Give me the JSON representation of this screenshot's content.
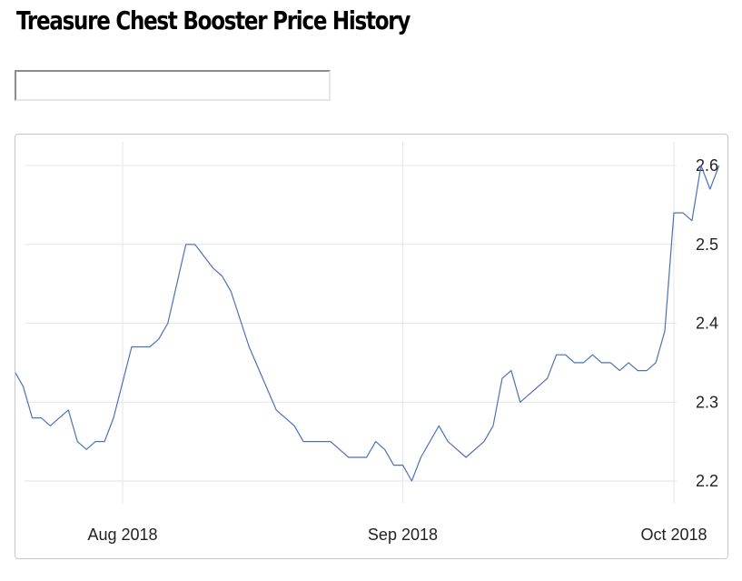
{
  "page": {
    "title": "Treasure Chest Booster Price History",
    "search": {
      "value": "",
      "placeholder": ""
    }
  },
  "colors": {
    "line": "#4a72b8",
    "grid": "#e6e6e6",
    "axis_text": "#222222"
  },
  "chart_data": {
    "type": "line",
    "title": "",
    "xlabel": "",
    "ylabel": "",
    "grid": true,
    "legend": "none",
    "ylim": [
      2.165,
      2.615
    ],
    "xlim": [
      "2018-07-19",
      "2018-10-02"
    ],
    "yticks": [
      2.2,
      2.3,
      2.4,
      2.5,
      2.6
    ],
    "xticks": [
      {
        "label": "Aug 2018",
        "date": "2018-08-01"
      },
      {
        "label": "Sep 2018",
        "date": "2018-09-01"
      },
      {
        "label": "Oct 2018",
        "date": "2018-10-01"
      }
    ],
    "series": [
      {
        "points": [
          [
            "2018-07-20",
            2.34
          ],
          [
            "2018-07-21",
            2.32
          ],
          [
            "2018-07-22",
            2.28
          ],
          [
            "2018-07-23",
            2.28
          ],
          [
            "2018-07-24",
            2.27
          ],
          [
            "2018-07-25",
            2.28
          ],
          [
            "2018-07-26",
            2.29
          ],
          [
            "2018-07-27",
            2.25
          ],
          [
            "2018-07-28",
            2.24
          ],
          [
            "2018-07-29",
            2.25
          ],
          [
            "2018-07-30",
            2.25
          ],
          [
            "2018-07-31",
            2.28
          ],
          [
            "2018-08-02",
            2.37
          ],
          [
            "2018-08-04",
            2.37
          ],
          [
            "2018-08-05",
            2.38
          ],
          [
            "2018-08-06",
            2.4
          ],
          [
            "2018-08-08",
            2.5
          ],
          [
            "2018-08-09",
            2.5
          ],
          [
            "2018-08-11",
            2.47
          ],
          [
            "2018-08-12",
            2.46
          ],
          [
            "2018-08-13",
            2.44
          ],
          [
            "2018-08-15",
            2.37
          ],
          [
            "2018-08-18",
            2.29
          ],
          [
            "2018-08-20",
            2.27
          ],
          [
            "2018-08-21",
            2.25
          ],
          [
            "2018-08-23",
            2.25
          ],
          [
            "2018-08-24",
            2.25
          ],
          [
            "2018-08-26",
            2.23
          ],
          [
            "2018-08-28",
            2.23
          ],
          [
            "2018-08-29",
            2.25
          ],
          [
            "2018-08-30",
            2.24
          ],
          [
            "2018-08-31",
            2.22
          ],
          [
            "2018-09-01",
            2.22
          ],
          [
            "2018-09-02",
            2.2
          ],
          [
            "2018-09-03",
            2.23
          ],
          [
            "2018-09-05",
            2.27
          ],
          [
            "2018-09-06",
            2.25
          ],
          [
            "2018-09-08",
            2.23
          ],
          [
            "2018-09-10",
            2.25
          ],
          [
            "2018-09-11",
            2.27
          ],
          [
            "2018-09-12",
            2.33
          ],
          [
            "2018-09-13",
            2.34
          ],
          [
            "2018-09-14",
            2.3
          ],
          [
            "2018-09-16",
            2.32
          ],
          [
            "2018-09-17",
            2.33
          ],
          [
            "2018-09-18",
            2.36
          ],
          [
            "2018-09-19",
            2.36
          ],
          [
            "2018-09-20",
            2.35
          ],
          [
            "2018-09-21",
            2.35
          ],
          [
            "2018-09-22",
            2.36
          ],
          [
            "2018-09-23",
            2.35
          ],
          [
            "2018-09-24",
            2.35
          ],
          [
            "2018-09-25",
            2.34
          ],
          [
            "2018-09-26",
            2.35
          ],
          [
            "2018-09-27",
            2.34
          ],
          [
            "2018-09-28",
            2.34
          ],
          [
            "2018-09-29",
            2.35
          ],
          [
            "2018-09-30",
            2.39
          ],
          [
            "2018-10-01",
            2.54
          ],
          [
            "2018-10-02",
            2.54
          ],
          [
            "2018-10-03",
            2.53
          ],
          [
            "2018-10-04",
            2.6
          ],
          [
            "2018-10-05",
            2.57
          ],
          [
            "2018-10-06",
            2.6
          ]
        ]
      }
    ]
  }
}
